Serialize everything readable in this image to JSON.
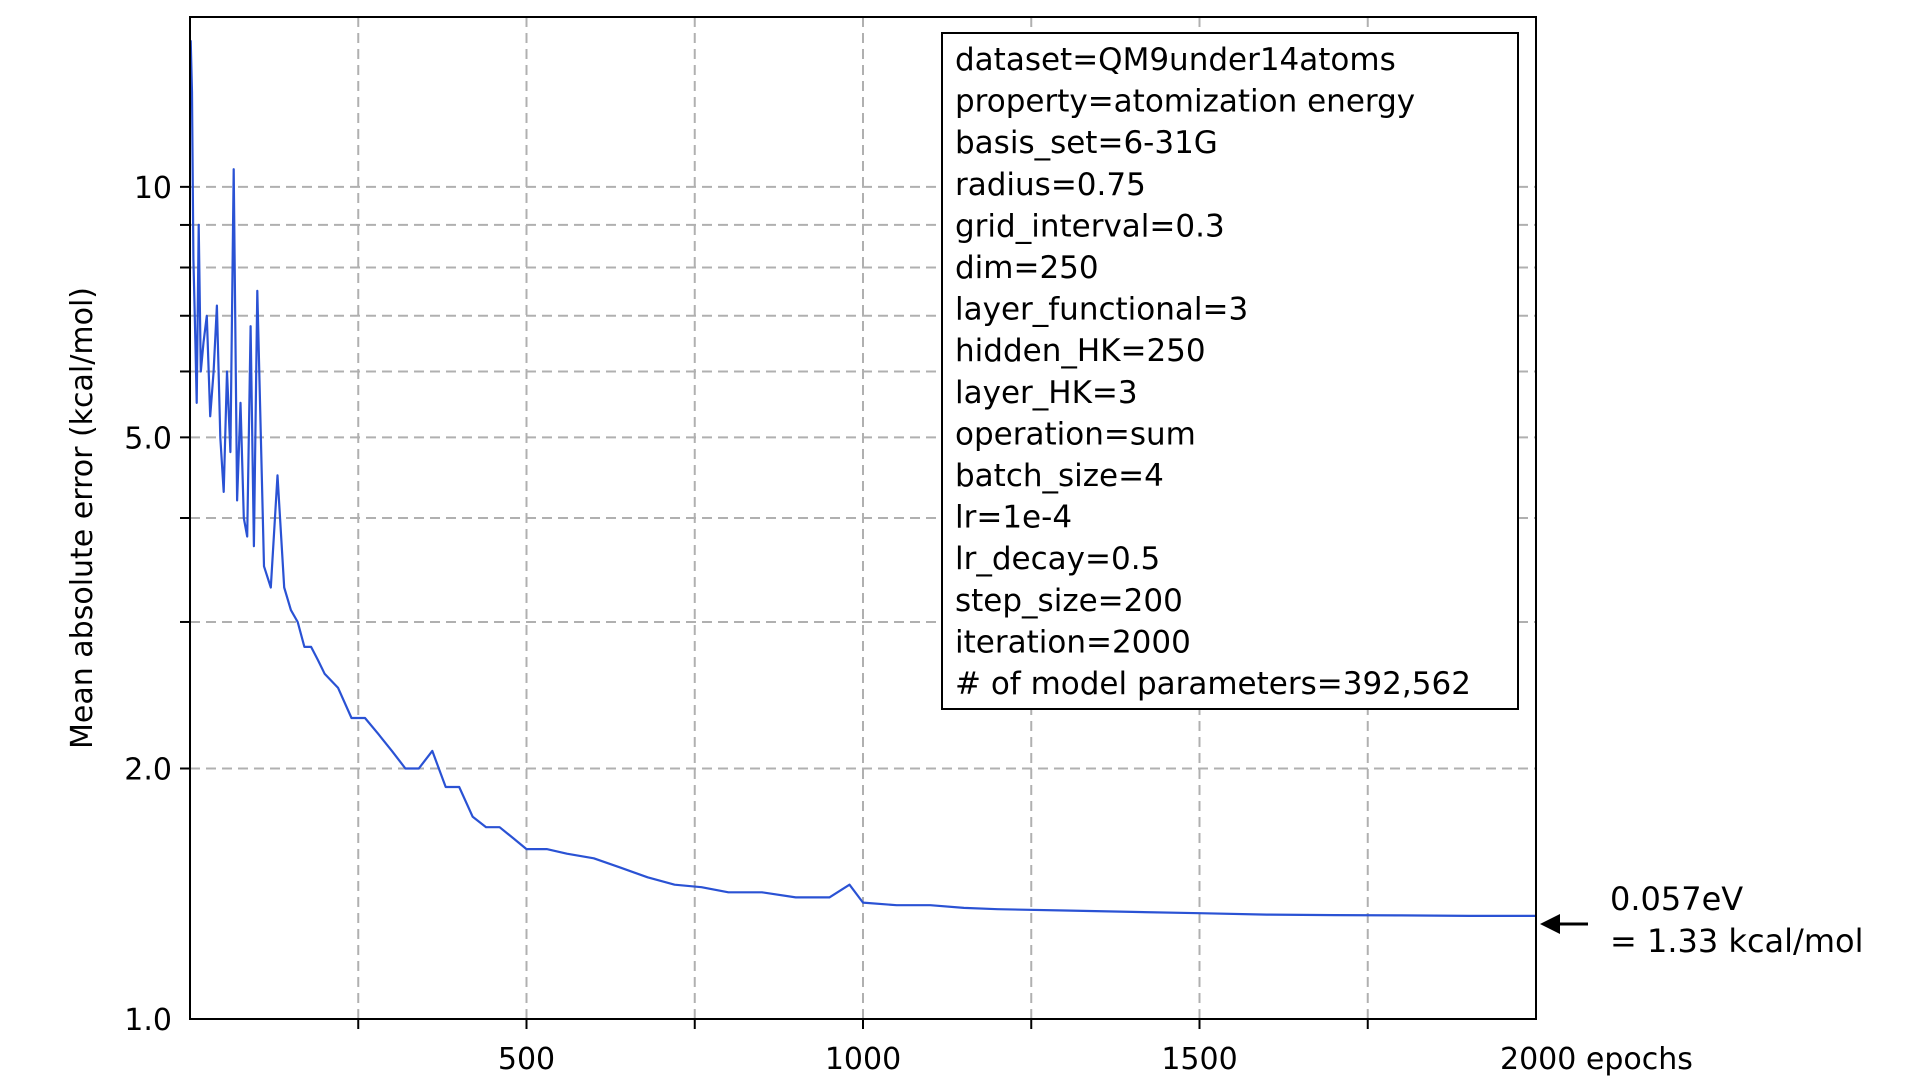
{
  "chart_data": {
    "type": "line",
    "title": "",
    "xlabel": "",
    "ylabel": "Mean absolute error (kcal/mol)",
    "xlim": [
      0,
      2000
    ],
    "ylim": [
      1.0,
      16.0
    ],
    "yscale": "log",
    "grid": true,
    "x_ticks": [
      {
        "value": 500,
        "label": "500"
      },
      {
        "value": 1000,
        "label": "1000"
      },
      {
        "value": 1500,
        "label": "1500"
      },
      {
        "value": 2000,
        "label": "2000 epochs"
      }
    ],
    "y_ticks": [
      {
        "value": 1.0,
        "label": "1.0"
      },
      {
        "value": 2.0,
        "label": "2.0"
      },
      {
        "value": 5.0,
        "label": "5.0"
      },
      {
        "value": 10,
        "label": "10"
      }
    ],
    "legend_position": "top-right",
    "legend_lines": [
      "dataset=QM9under14atoms",
      "property=atomization energy",
      "basis_set=6-31G",
      "radius=0.75",
      "grid_interval=0.3",
      "dim=250",
      "layer_functional=3",
      "hidden_HK=250",
      "layer_HK=3",
      "operation=sum",
      "batch_size=4",
      "lr=1e-4",
      "lr_decay=0.5",
      "step_size=200",
      "iteration=2000",
      "# of model parameters=392,562"
    ],
    "annotation": {
      "line1": "0.057eV",
      "line2": "= 1.33 kcal/mol",
      "value": 1.33
    },
    "series": [
      {
        "color": "#2a52d4",
        "x": [
          1,
          3,
          5,
          8,
          10,
          13,
          16,
          20,
          25,
          30,
          35,
          40,
          45,
          50,
          55,
          60,
          65,
          70,
          75,
          80,
          85,
          90,
          95,
          100,
          110,
          120,
          130,
          140,
          150,
          160,
          170,
          180,
          190,
          200,
          220,
          240,
          260,
          280,
          300,
          320,
          340,
          360,
          380,
          400,
          420,
          440,
          460,
          480,
          500,
          530,
          560,
          600,
          640,
          680,
          720,
          760,
          800,
          850,
          900,
          950,
          980,
          1000,
          1050,
          1100,
          1150,
          1200,
          1300,
          1400,
          1500,
          1600,
          1700,
          1800,
          1900,
          2000
        ],
        "y": [
          15.0,
          13.0,
          8.2,
          6.5,
          5.5,
          9.0,
          6.0,
          6.5,
          7.0,
          5.3,
          6.0,
          7.2,
          5.0,
          4.3,
          6.0,
          4.8,
          10.5,
          4.2,
          5.5,
          4.0,
          3.8,
          6.8,
          3.7,
          7.5,
          3.5,
          3.3,
          4.5,
          3.3,
          3.1,
          3.0,
          2.8,
          2.8,
          2.7,
          2.6,
          2.5,
          2.3,
          2.3,
          2.2,
          2.1,
          2.0,
          2.0,
          2.1,
          1.9,
          1.9,
          1.75,
          1.7,
          1.7,
          1.65,
          1.6,
          1.6,
          1.58,
          1.56,
          1.52,
          1.48,
          1.45,
          1.44,
          1.42,
          1.42,
          1.4,
          1.4,
          1.45,
          1.38,
          1.37,
          1.37,
          1.36,
          1.355,
          1.35,
          1.345,
          1.34,
          1.335,
          1.333,
          1.332,
          1.33,
          1.33
        ]
      }
    ]
  }
}
